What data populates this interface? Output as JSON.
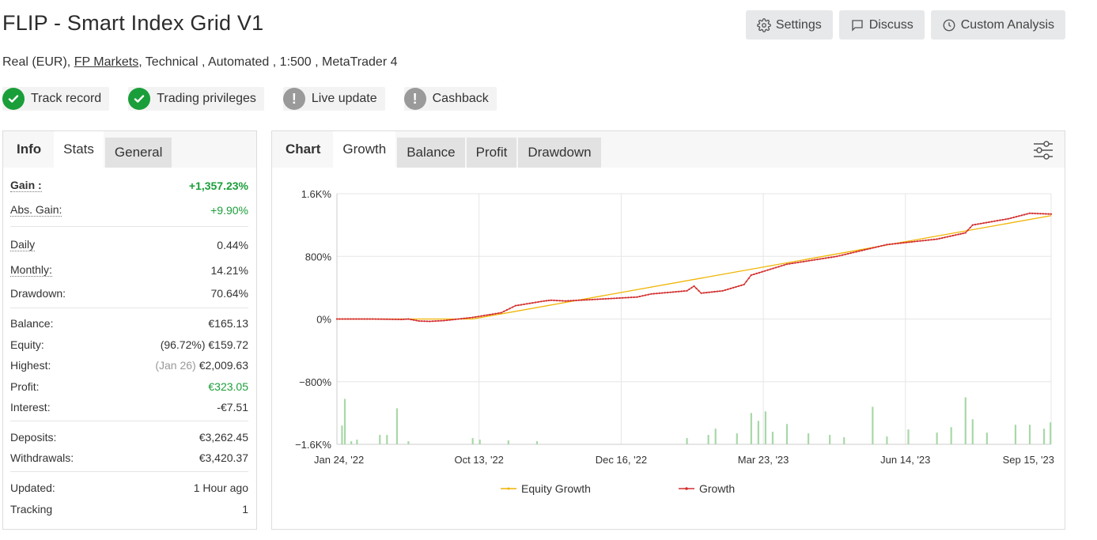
{
  "header": {
    "title": "FLIP - Smart Index Grid V1",
    "subtitle_prefix": "Real (EUR),",
    "broker_link": "FP Markets",
    "subtitle_suffix": ", Technical , Automated , 1:500 , MetaTrader 4"
  },
  "buttons": {
    "settings": "Settings",
    "discuss": "Discuss",
    "custom_analysis": "Custom Analysis"
  },
  "badges": [
    {
      "label": "Track record",
      "status": "ok"
    },
    {
      "label": "Trading privileges",
      "status": "ok"
    },
    {
      "label": "Live update",
      "status": "warn"
    },
    {
      "label": "Cashback",
      "status": "warn"
    }
  ],
  "left_tabs": {
    "head": "Info",
    "active": "Stats",
    "other": "General"
  },
  "stats": {
    "gain_label": "Gain :",
    "gain_value": "+1,357.23%",
    "abs_gain_label": "Abs. Gain:",
    "abs_gain_value": "+9.90%",
    "daily_label": "Daily",
    "daily_value": "0.44%",
    "monthly_label": "Monthly:",
    "monthly_value": "14.21%",
    "drawdown_label": "Drawdown:",
    "drawdown_value": "70.64%",
    "balance_label": "Balance:",
    "balance_value": "€165.13",
    "equity_label": "Equity:",
    "equity_pct": "(96.72%)",
    "equity_value": "€159.72",
    "highest_label": "Highest:",
    "highest_date": "(Jan 26)",
    "highest_value": "€2,009.63",
    "profit_label": "Profit:",
    "profit_value": "€323.05",
    "interest_label": "Interest:",
    "interest_value": "-€7.51",
    "deposits_label": "Deposits:",
    "deposits_value": "€3,262.45",
    "withdrawals_label": "Withdrawals:",
    "withdrawals_value": "€3,420.37",
    "updated_label": "Updated:",
    "updated_value": "1 Hour ago",
    "tracking_label": "Tracking",
    "tracking_value": "1"
  },
  "right_tabs": {
    "head": "Chart",
    "active": "Growth",
    "others": [
      "Balance",
      "Profit",
      "Drawdown"
    ]
  },
  "colors": {
    "equity_line": "#f0b400",
    "growth_line": "#d32f2f",
    "volume_bars": "#a8d8a8",
    "green": "#1a9e3a"
  },
  "chart_data": {
    "type": "line",
    "y_ticks": [
      "1.6K%",
      "800%",
      "0%",
      "−800%",
      "−1.6K%"
    ],
    "y_tick_values": [
      1600,
      800,
      0,
      -800,
      -1600
    ],
    "ylim": [
      -1600,
      1600
    ],
    "x_ticks": [
      "Jan 24, '22",
      "Oct 13, '22",
      "Dec 16, '22",
      "Mar 23, '23",
      "Jun 14, '23",
      "Sep 15, '23"
    ],
    "x_tick_positions": [
      0,
      0.199,
      0.398,
      0.597,
      0.796,
      1.0
    ],
    "legend": [
      "Equity Growth",
      "Growth"
    ],
    "series": [
      {
        "name": "Equity Growth",
        "points": [
          [
            0,
            0
          ],
          [
            0.19,
            0
          ],
          [
            1.0,
            1320
          ]
        ]
      },
      {
        "name": "Growth",
        "points": [
          [
            0,
            0
          ],
          [
            0.05,
            0
          ],
          [
            0.09,
            -5
          ],
          [
            0.1,
            0
          ],
          [
            0.115,
            -25
          ],
          [
            0.13,
            -30
          ],
          [
            0.15,
            -20
          ],
          [
            0.19,
            20
          ],
          [
            0.23,
            80
          ],
          [
            0.25,
            170
          ],
          [
            0.29,
            230
          ],
          [
            0.3,
            240
          ],
          [
            0.32,
            230
          ],
          [
            0.38,
            260
          ],
          [
            0.42,
            280
          ],
          [
            0.44,
            320
          ],
          [
            0.49,
            360
          ],
          [
            0.5,
            420
          ],
          [
            0.51,
            330
          ],
          [
            0.54,
            360
          ],
          [
            0.57,
            440
          ],
          [
            0.58,
            560
          ],
          [
            0.63,
            700
          ],
          [
            0.7,
            800
          ],
          [
            0.77,
            950
          ],
          [
            0.84,
            1020
          ],
          [
            0.87,
            1080
          ],
          [
            0.88,
            1100
          ],
          [
            0.89,
            1200
          ],
          [
            0.94,
            1280
          ],
          [
            0.97,
            1350
          ],
          [
            1.0,
            1340
          ]
        ]
      }
    ],
    "volume_bars": [
      [
        0.007,
        240
      ],
      [
        0.011,
        580
      ],
      [
        0.02,
        40
      ],
      [
        0.028,
        60
      ],
      [
        0.06,
        120
      ],
      [
        0.07,
        120
      ],
      [
        0.084,
        460
      ],
      [
        0.1,
        40
      ],
      [
        0.19,
        80
      ],
      [
        0.2,
        60
      ],
      [
        0.24,
        50
      ],
      [
        0.28,
        40
      ],
      [
        0.49,
        80
      ],
      [
        0.52,
        120
      ],
      [
        0.53,
        200
      ],
      [
        0.56,
        140
      ],
      [
        0.58,
        400
      ],
      [
        0.59,
        300
      ],
      [
        0.6,
        420
      ],
      [
        0.61,
        160
      ],
      [
        0.63,
        260
      ],
      [
        0.66,
        140
      ],
      [
        0.69,
        120
      ],
      [
        0.71,
        90
      ],
      [
        0.75,
        480
      ],
      [
        0.77,
        100
      ],
      [
        0.8,
        190
      ],
      [
        0.84,
        150
      ],
      [
        0.86,
        220
      ],
      [
        0.88,
        600
      ],
      [
        0.89,
        320
      ],
      [
        0.91,
        150
      ],
      [
        0.95,
        250
      ],
      [
        0.97,
        250
      ],
      [
        0.99,
        200
      ],
      [
        0.999,
        280
      ]
    ]
  }
}
